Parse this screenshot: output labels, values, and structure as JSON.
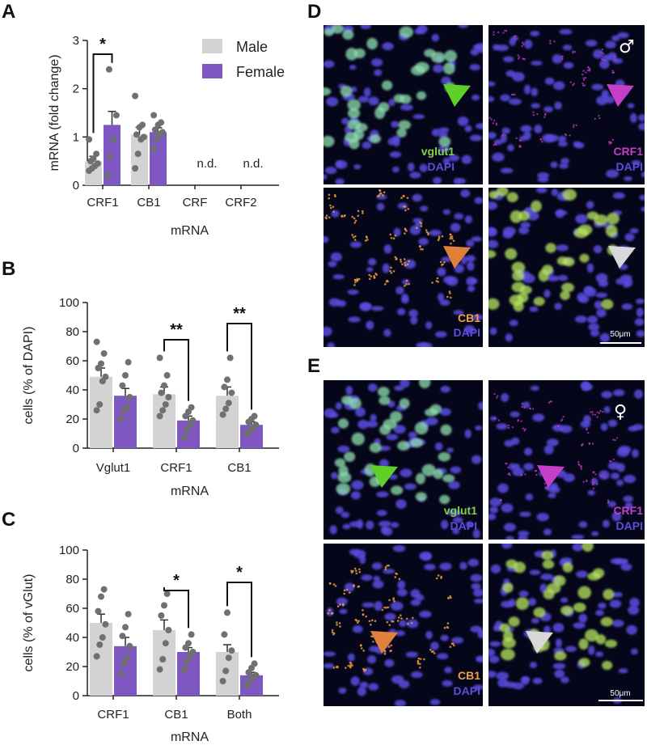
{
  "colors": {
    "male": "#d3d3d3",
    "female": "#7e57c2",
    "dot": "#707070",
    "err": "#303030",
    "vglut1": "#7cd44a",
    "crf1": "#c040c8",
    "cb1": "#f0a040",
    "dapi": "#5a4ee0",
    "arrow_green": "#5fcf2a",
    "arrow_magenta": "#c33fc8",
    "arrow_orange": "#e0803a",
    "arrow_white": "#d8d8d8"
  },
  "panel_letters": {
    "A": "A",
    "B": "B",
    "C": "C",
    "D": "D",
    "E": "E"
  },
  "legend": {
    "male": "Male",
    "female": "Female"
  },
  "chart_data": [
    {
      "id": "A",
      "type": "bar",
      "ylabel": "mRNA (fold change)",
      "xlabel": "mRNA",
      "ylim": [
        0,
        3
      ],
      "yticks": [
        0,
        1,
        2,
        3
      ],
      "categories": [
        "CRF1",
        "CB1",
        "CRF",
        "CRF2"
      ],
      "series": [
        {
          "name": "Male",
          "values": [
            0.5,
            1.05,
            null,
            null
          ],
          "errors": [
            0.1,
            0.15,
            null,
            null
          ],
          "points": [
            [
              0.3,
              0.35,
              0.4,
              0.45,
              0.5,
              0.55,
              0.65,
              0.95
            ],
            [
              0.35,
              0.65,
              0.95,
              1.0,
              1.05,
              1.2,
              1.25,
              1.85
            ],
            [],
            []
          ]
        },
        {
          "name": "Female",
          "values": [
            1.25,
            1.1,
            null,
            null
          ],
          "errors": [
            0.28,
            0.09,
            null,
            null
          ],
          "points": [
            [
              0.2,
              0.6,
              0.95,
              1.45,
              2.4
            ],
            [
              0.75,
              0.95,
              1.05,
              1.1,
              1.15,
              1.25,
              1.3,
              1.45
            ],
            [],
            []
          ]
        }
      ],
      "annotations": [
        "n.d.",
        "n.d."
      ],
      "significance": [
        {
          "category": "CRF1",
          "label": "*"
        }
      ]
    },
    {
      "id": "B",
      "type": "bar",
      "ylabel": "cells (% of DAPI)",
      "xlabel": "mRNA",
      "ylim": [
        0,
        100
      ],
      "yticks": [
        0,
        20,
        40,
        60,
        80,
        100
      ],
      "categories": [
        "Vglut1",
        "CRF1",
        "CB1"
      ],
      "series": [
        {
          "name": "Male",
          "values": [
            49,
            37,
            36
          ],
          "errors": [
            6,
            5,
            6
          ],
          "points": [
            [
              26,
              30,
              46,
              49,
              55,
              58,
              65,
              73
            ],
            [
              22,
              26,
              30,
              35,
              38,
              43,
              50,
              62
            ],
            [
              23,
              27,
              31,
              38,
              42,
              47,
              62
            ]
          ]
        },
        {
          "name": "Female",
          "values": [
            36,
            19,
            16
          ],
          "errors": [
            5,
            3,
            2
          ],
          "points": [
            [
              20,
              26,
              28,
              35,
              43,
              50,
              59
            ],
            [
              7,
              12,
              16,
              19,
              22,
              25,
              28
            ],
            [
              10,
              12,
              14,
              16,
              18,
              20,
              22
            ]
          ]
        }
      ],
      "significance": [
        {
          "category": "CRF1",
          "label": "**"
        },
        {
          "category": "CB1",
          "label": "**"
        }
      ]
    },
    {
      "id": "C",
      "type": "bar",
      "ylabel": "cells (% of vGlut)",
      "xlabel": "mRNA",
      "ylim": [
        0,
        100
      ],
      "yticks": [
        0,
        20,
        40,
        60,
        80,
        100
      ],
      "categories": [
        "CRF1",
        "CB1",
        "Both"
      ],
      "series": [
        {
          "name": "Male",
          "values": [
            50,
            45,
            30
          ],
          "errors": [
            6,
            7,
            5
          ],
          "points": [
            [
              27,
              35,
              40,
              49,
              58,
              68,
              73
            ],
            [
              18,
              25,
              36,
              45,
              55,
              62,
              70
            ],
            [
              10,
              17,
              26,
              31,
              42,
              57
            ]
          ]
        },
        {
          "name": "Female",
          "values": [
            34,
            30,
            14
          ],
          "errors": [
            6,
            3,
            2
          ],
          "points": [
            [
              15,
              22,
              26,
              34,
              41,
              47,
              56
            ],
            [
              18,
              23,
              27,
              30,
              33,
              36,
              42
            ],
            [
              7,
              10,
              13,
              14,
              16,
              19,
              22
            ]
          ]
        }
      ],
      "significance": [
        {
          "category": "CB1",
          "label": "*"
        },
        {
          "category": "Both",
          "label": "*"
        }
      ]
    }
  ],
  "micrographs": {
    "sex_male": "♂",
    "sex_female": "♀",
    "label_vglut1": "vglut1",
    "label_crf1": "CRF1",
    "label_cb1": "CB1",
    "label_dapi": "DAPI",
    "scale_bar": "50μm"
  }
}
